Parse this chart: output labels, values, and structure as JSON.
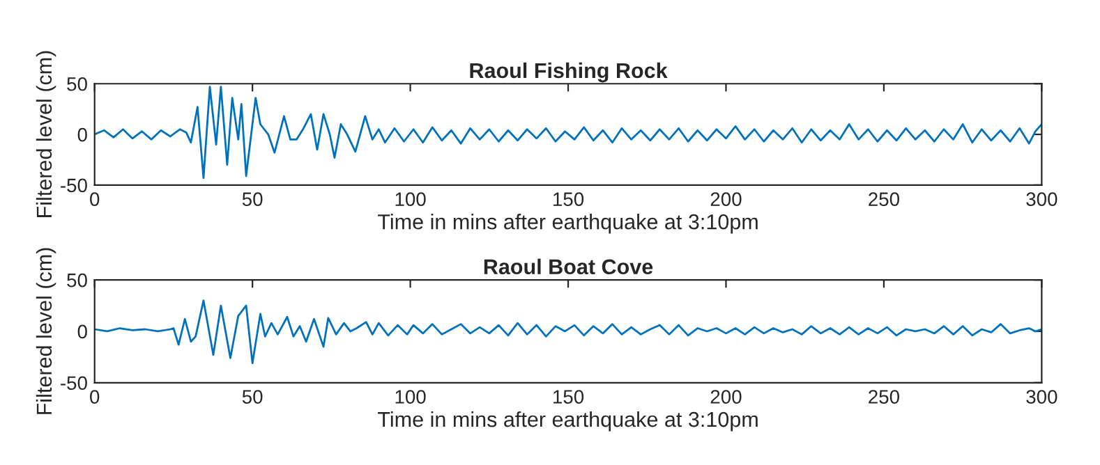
{
  "chart_data": [
    {
      "type": "line",
      "title": "Raoul Fishing Rock",
      "xlabel": "Time in mins after earthquake at 3:10pm",
      "ylabel": "Filtered level (cm)",
      "xlim": [
        0,
        300
      ],
      "xticks": [
        0,
        50,
        100,
        150,
        200,
        250,
        300
      ],
      "ylim": [
        -50,
        50
      ],
      "yticks": [
        -50,
        0,
        50
      ],
      "series": [
        {
          "color": "#0072bd",
          "x": [
            0,
            3,
            6,
            9,
            12,
            15,
            18,
            21,
            24,
            27,
            29,
            30.5,
            32.6,
            34.5,
            36.5,
            38.5,
            40,
            42,
            43.6,
            45.5,
            46.5,
            48,
            51,
            52.5,
            55,
            57,
            60,
            62,
            64,
            66,
            68.5,
            70.5,
            72.5,
            74.5,
            76,
            78,
            80,
            82.6,
            85.7,
            88,
            90,
            92,
            95,
            98,
            101,
            104,
            107,
            110,
            113,
            116,
            119,
            122,
            125,
            128,
            131,
            134,
            137,
            140,
            143,
            146,
            149,
            152,
            155,
            158,
            161,
            164,
            167,
            170,
            173,
            176,
            179,
            182,
            185,
            188,
            191,
            194,
            197,
            200,
            203,
            206,
            209,
            212,
            215,
            218,
            221,
            224,
            227,
            230,
            233,
            236,
            239,
            242,
            245,
            248,
            251,
            254,
            257,
            260,
            263,
            266,
            269,
            272,
            275,
            278,
            281,
            284,
            287,
            290,
            293,
            296,
            298,
            300
          ],
          "values": [
            0,
            4,
            -3,
            5,
            -4,
            3,
            -5,
            4,
            -2,
            5,
            2,
            -8,
            27,
            -43,
            47,
            -10,
            47,
            -30,
            36,
            -5,
            30,
            -41,
            36,
            10,
            0,
            -18,
            18,
            -5,
            -5,
            5,
            20,
            -15,
            20,
            0,
            -23,
            10,
            0,
            -17,
            18,
            -5,
            5,
            -8,
            6,
            -7,
            5,
            -8,
            7,
            -6,
            4,
            -9,
            6,
            -5,
            5,
            -7,
            4,
            -6,
            5,
            -4,
            6,
            -7,
            3,
            -5,
            7,
            -6,
            4,
            -8,
            6,
            -5,
            4,
            -6,
            5,
            -5,
            6,
            -7,
            4,
            -6,
            5,
            -4,
            8,
            -5,
            5,
            -7,
            4,
            -5,
            6,
            -8,
            5,
            -6,
            4,
            -5,
            10,
            -5,
            5,
            -7,
            4,
            -6,
            6,
            -5,
            4,
            -7,
            5,
            -5,
            10,
            -8,
            5,
            -6,
            4,
            -7,
            6,
            -9,
            3,
            10
          ]
        }
      ]
    },
    {
      "type": "line",
      "title": "Raoul Boat Cove",
      "xlabel": "Time in mins after earthquake at 3:10pm",
      "ylabel": "Filtered level (cm)",
      "xlim": [
        0,
        300
      ],
      "xticks": [
        0,
        50,
        100,
        150,
        200,
        250,
        300
      ],
      "ylim": [
        -50,
        50
      ],
      "yticks": [
        -50,
        0,
        50
      ],
      "series": [
        {
          "color": "#0072bd",
          "x": [
            0,
            4,
            8,
            12,
            16,
            20,
            24,
            25,
            26.6,
            28.6,
            30.5,
            32,
            34.5,
            37.6,
            40,
            43,
            45.5,
            48,
            50,
            52.5,
            54,
            56,
            58,
            61,
            63,
            65,
            67,
            69.5,
            72.5,
            74,
            76.5,
            79,
            81,
            83,
            86,
            88,
            90,
            93,
            96,
            99,
            101,
            104,
            107,
            110,
            113,
            116,
            119,
            122,
            125,
            128,
            131,
            134,
            137,
            140,
            143,
            146,
            149,
            152,
            155,
            158,
            161,
            164,
            167,
            170,
            173,
            176,
            179,
            182,
            185,
            188,
            191,
            194,
            197,
            200,
            203,
            206,
            209,
            212,
            215,
            218,
            221,
            224,
            227,
            230,
            233,
            236,
            239,
            242,
            245,
            248,
            251,
            254,
            257,
            260,
            263,
            266,
            269,
            272,
            275,
            278,
            281,
            284,
            287,
            290,
            293,
            296,
            298,
            300
          ],
          "values": [
            2,
            0,
            3,
            1,
            2,
            0,
            2,
            3,
            -13,
            12,
            -10,
            -5,
            30,
            -23,
            25,
            -26,
            15,
            25,
            -31,
            17,
            -5,
            8,
            -3,
            14,
            -5,
            5,
            -10,
            12,
            -15,
            13,
            -3,
            8,
            0,
            3,
            9,
            -3,
            8,
            -4,
            6,
            -3,
            6,
            -2,
            7,
            -3,
            2,
            7,
            -2,
            4,
            -2,
            6,
            -4,
            8,
            -3,
            6,
            -5,
            5,
            0,
            6,
            -4,
            5,
            -2,
            7,
            -3,
            4,
            -3,
            2,
            6,
            -3,
            6,
            -4,
            3,
            0,
            3,
            -2,
            3,
            -3,
            4,
            -2,
            3,
            -1,
            2,
            -3,
            5,
            -2,
            3,
            -3,
            4,
            -3,
            3,
            -2,
            4,
            -4,
            2,
            0,
            2,
            -2,
            5,
            -3,
            5,
            -4,
            2,
            -1,
            7,
            -2,
            1,
            3,
            0,
            2
          ]
        }
      ]
    }
  ]
}
